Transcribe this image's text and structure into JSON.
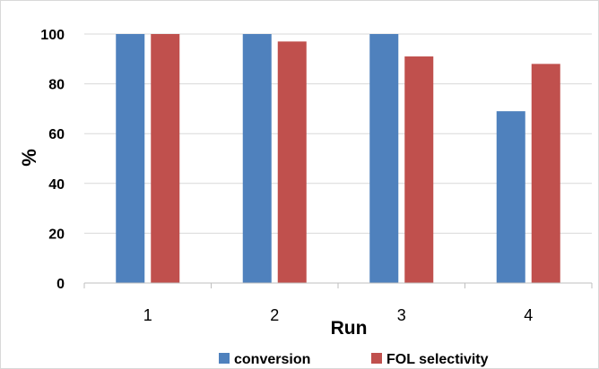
{
  "chart_data": {
    "type": "bar",
    "title": "",
    "xlabel": "Run",
    "ylabel": "%",
    "categories": [
      "1",
      "2",
      "3",
      "4"
    ],
    "ylim": [
      0,
      100
    ],
    "yticks": [
      0,
      20,
      40,
      60,
      80,
      100
    ],
    "grid": true,
    "legend_position": "bottom",
    "series": [
      {
        "name": "conversion",
        "color": "#4f81bd",
        "values": [
          100,
          100,
          100,
          69
        ]
      },
      {
        "name": "FOL selectivity",
        "color": "#c0504d",
        "values": [
          100,
          97,
          91,
          88
        ]
      }
    ]
  }
}
